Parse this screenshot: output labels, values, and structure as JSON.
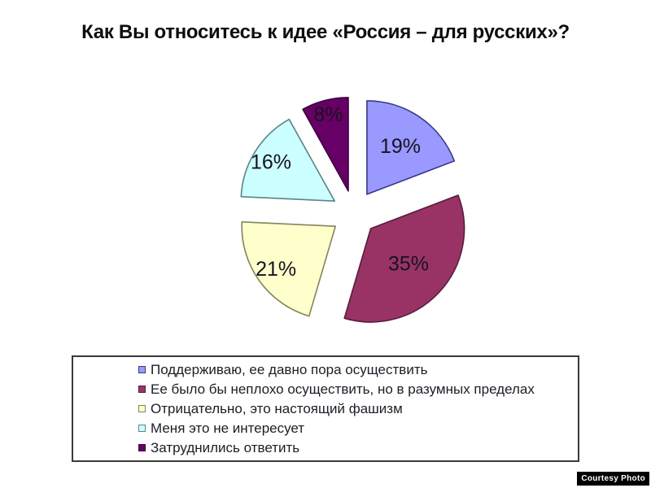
{
  "watermark_label": "Courtesy Photo",
  "chart_data": {
    "type": "pie",
    "title": "Как Вы относитесь к идее «Россия – для русских»?",
    "unit": "%",
    "start_angle_deg": 0,
    "direction": "clockwise",
    "exploded": true,
    "legend_position": "bottom-box",
    "slices": [
      {
        "label": "Поддерживаю, ее давно пора осуществить",
        "value": 19,
        "color": "#9999FF",
        "border_color": "#39398C"
      },
      {
        "label": "Ее было бы неплохо осуществить, но в разумных пределах",
        "value": 35,
        "color": "#993366",
        "border_color": "#571D3B"
      },
      {
        "label": "Отрицательно, это настоящий фашизм",
        "value": 21,
        "color": "#FFFFCC",
        "border_color": "#84845C"
      },
      {
        "label": "Меня это не интересует",
        "value": 16,
        "color": "#CCFFFF",
        "border_color": "#5C8484"
      },
      {
        "label": "Затруднились ответить",
        "value": 8,
        "color": "#660066",
        "border_color": "#3D0040"
      }
    ]
  }
}
